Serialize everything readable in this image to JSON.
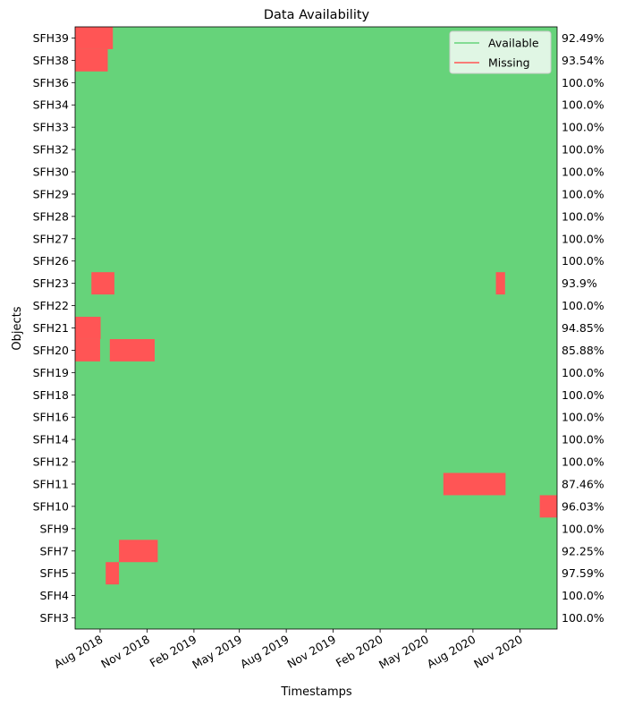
{
  "chart_data": {
    "type": "heatmap",
    "title": "Data Availability",
    "xlabel": "Timestamps",
    "ylabel": "Objects",
    "xlim": [
      "2018-06-13",
      "2021-01-13"
    ],
    "x_ticks": [
      {
        "label": "Aug 2018",
        "date": "2018-08-01"
      },
      {
        "label": "Nov 2018",
        "date": "2018-11-01"
      },
      {
        "label": "Feb 2019",
        "date": "2019-02-01"
      },
      {
        "label": "May 2019",
        "date": "2019-05-01"
      },
      {
        "label": "Aug 2019",
        "date": "2019-08-01"
      },
      {
        "label": "Nov 2019",
        "date": "2019-11-01"
      },
      {
        "label": "Feb 2020",
        "date": "2020-02-01"
      },
      {
        "label": "May 2020",
        "date": "2020-05-01"
      },
      {
        "label": "Aug 2020",
        "date": "2020-08-01"
      },
      {
        "label": "Nov 2020",
        "date": "2020-11-01"
      }
    ],
    "legend": {
      "location": "top-right",
      "entries": [
        {
          "label": "Available",
          "color": "#66d37a"
        },
        {
          "label": "Missing",
          "color": "#ff5555"
        }
      ]
    },
    "colors": {
      "available": "#66d37a",
      "missing": "#ff5555"
    },
    "objects": [
      {
        "name": "SFH39",
        "availability": "92.49%",
        "missing": [
          [
            "2018-06-13",
            "2018-08-26"
          ]
        ]
      },
      {
        "name": "SFH38",
        "availability": "93.54%",
        "missing": [
          [
            "2018-06-13",
            "2018-08-16"
          ]
        ]
      },
      {
        "name": "SFH36",
        "availability": "100.0%",
        "missing": []
      },
      {
        "name": "SFH34",
        "availability": "100.0%",
        "missing": []
      },
      {
        "name": "SFH33",
        "availability": "100.0%",
        "missing": []
      },
      {
        "name": "SFH32",
        "availability": "100.0%",
        "missing": []
      },
      {
        "name": "SFH30",
        "availability": "100.0%",
        "missing": []
      },
      {
        "name": "SFH29",
        "availability": "100.0%",
        "missing": []
      },
      {
        "name": "SFH28",
        "availability": "100.0%",
        "missing": []
      },
      {
        "name": "SFH27",
        "availability": "100.0%",
        "missing": []
      },
      {
        "name": "SFH26",
        "availability": "100.0%",
        "missing": []
      },
      {
        "name": "SFH23",
        "availability": "93.9%",
        "missing": [
          [
            "2018-07-15",
            "2018-08-29"
          ],
          [
            "2020-09-15",
            "2020-10-03"
          ]
        ]
      },
      {
        "name": "SFH22",
        "availability": "100.0%",
        "missing": []
      },
      {
        "name": "SFH21",
        "availability": "94.85%",
        "missing": [
          [
            "2018-06-13",
            "2018-08-02"
          ]
        ]
      },
      {
        "name": "SFH20",
        "availability": "85.88%",
        "missing": [
          [
            "2018-06-13",
            "2018-08-01"
          ],
          [
            "2018-08-20",
            "2018-11-16"
          ]
        ]
      },
      {
        "name": "SFH19",
        "availability": "100.0%",
        "missing": []
      },
      {
        "name": "SFH18",
        "availability": "100.0%",
        "missing": []
      },
      {
        "name": "SFH16",
        "availability": "100.0%",
        "missing": []
      },
      {
        "name": "SFH14",
        "availability": "100.0%",
        "missing": []
      },
      {
        "name": "SFH12",
        "availability": "100.0%",
        "missing": []
      },
      {
        "name": "SFH11",
        "availability": "87.46%",
        "missing": [
          [
            "2020-06-04",
            "2020-10-04"
          ]
        ]
      },
      {
        "name": "SFH10",
        "availability": "96.03%",
        "missing": [
          [
            "2020-12-10",
            "2021-01-13"
          ]
        ]
      },
      {
        "name": "SFH9",
        "availability": "100.0%",
        "missing": []
      },
      {
        "name": "SFH7",
        "availability": "92.25%",
        "missing": [
          [
            "2018-09-07",
            "2018-11-22"
          ]
        ]
      },
      {
        "name": "SFH5",
        "availability": "97.59%",
        "missing": [
          [
            "2018-08-12",
            "2018-09-07"
          ]
        ]
      },
      {
        "name": "SFH4",
        "availability": "100.0%",
        "missing": []
      },
      {
        "name": "SFH3",
        "availability": "100.0%",
        "missing": []
      }
    ]
  }
}
